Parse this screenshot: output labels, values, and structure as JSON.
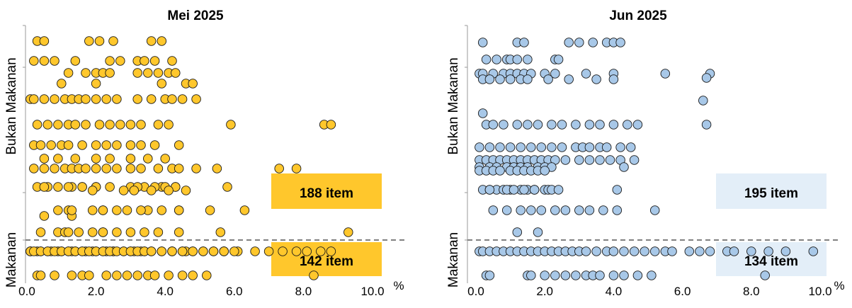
{
  "chart_data": [
    {
      "type": "scatter",
      "title": "Mei 2025",
      "x_unit": "%",
      "xlim": [
        0,
        10
      ],
      "xticks": [
        "0.0",
        "2.0",
        "4.0",
        "6.0",
        "8.0",
        "10.0"
      ],
      "y_groups": [
        "Bukan Makanan",
        "Makanan"
      ],
      "point_color": "#FFC72C",
      "box_color": "#FFC72C",
      "boxes": [
        {
          "label": "188 item",
          "group": "Bukan Makanan"
        },
        {
          "label": "142 item",
          "group": "Makanan"
        }
      ],
      "strip_points": [
        {
          "strip": 1,
          "x": [
            0.3,
            0.5,
            1.8,
            2.1,
            2.5,
            3.6,
            3.9
          ]
        },
        {
          "strip": 2,
          "x": [
            0.2,
            0.5,
            0.8,
            1.4,
            2.4,
            2.7,
            3.2,
            3.4,
            3.7,
            4.2
          ]
        },
        {
          "strip": 3,
          "x": [
            1.2,
            1.7,
            2.0,
            2.2,
            2.4,
            3.2,
            3.5,
            3.8,
            4.1,
            4.3
          ]
        },
        {
          "strip": 4,
          "x": [
            1.0,
            2.0,
            3.9,
            4.6,
            4.8
          ]
        },
        {
          "strip": 5,
          "x": [
            0.1,
            0.2,
            0.5,
            0.8,
            1.1,
            1.3,
            1.5,
            1.7,
            2.0,
            2.3,
            2.6,
            3.2,
            3.6,
            4.0,
            4.2,
            4.5,
            4.9
          ]
        },
        {
          "strip": 6,
          "x": [
            0.3,
            0.6,
            0.9,
            1.2,
            1.4,
            1.7,
            2.1,
            2.4,
            2.7,
            3.0,
            3.3,
            3.8,
            4.1,
            5.9,
            8.6,
            8.8
          ]
        },
        {
          "strip": 7,
          "x": [
            0.2,
            0.4,
            0.7,
            1.0,
            1.2,
            1.6,
            2.0,
            2.3,
            2.6,
            3.0,
            3.3,
            3.7,
            4.4
          ]
        },
        {
          "strip": 8,
          "x": [
            0.5,
            0.9,
            1.4,
            2.0,
            2.4,
            3.0,
            3.5,
            4.0
          ]
        },
        {
          "strip": 9,
          "x": [
            0.2,
            0.5,
            0.8,
            1.1,
            1.3,
            1.5,
            1.7,
            2.0,
            2.3,
            2.6,
            3.0,
            3.3,
            3.8,
            4.2,
            4.4,
            4.9,
            5.5,
            7.3,
            7.8
          ]
        },
        {
          "strip": 10,
          "x": [
            0.3,
            0.6,
            0.9,
            1.3,
            1.6,
            2.0,
            2.4,
            3.0,
            3.4,
            3.9,
            4.3,
            5.8
          ]
        },
        {
          "strip": 11,
          "x": [
            1.2,
            1.9,
            2.2,
            2.6,
            3.5,
            3.9,
            4.4,
            5.3
          ]
        },
        {
          "strip": 12,
          "x": [
            0.4,
            0.9,
            1.1,
            1.5,
            1.9,
            2.2,
            2.6,
            3.0,
            3.4,
            3.8,
            4.4,
            5.6,
            9.3
          ]
        },
        {
          "strip": 13,
          "x": [
            0.5,
            1.3
          ]
        },
        {
          "strip": 14,
          "x": [
            0.1,
            0.3,
            0.6,
            0.9,
            1.2,
            1.4,
            1.7,
            2.0,
            2.3,
            2.5,
            3.0,
            3.4,
            4.2,
            4.6,
            5.7
          ]
        },
        {
          "strip": 15,
          "x": [
            0.1,
            0.4,
            0.7,
            1.0,
            1.3,
            1.6,
            1.9,
            2.2,
            2.5,
            2.8,
            3.1,
            3.3,
            3.6,
            3.9,
            4.2,
            4.5,
            4.8,
            5.1,
            5.4,
            5.7,
            6.1
          ]
        },
        {
          "strip": 16,
          "x": [
            0.9,
            1.3,
            2.2,
            2.9,
            3.3,
            4.4,
            6.3
          ]
        },
        {
          "strip": 17,
          "x": [
            0.5,
            1.2,
            1.6,
            2.0,
            3.2,
            3.7,
            4.0,
            4.3
          ]
        },
        {
          "strip": 18,
          "x": [
            1.9,
            2.8,
            3.1,
            3.6,
            4.1,
            4.6
          ]
        },
        {
          "strip": 19,
          "x": [
            1.2,
            2.2
          ]
        },
        {
          "strip": 20,
          "x": [
            0.1,
            0.2,
            0.4,
            0.6,
            0.8,
            1.0,
            1.2,
            1.4,
            1.6,
            1.8,
            2.0,
            2.2,
            2.4,
            2.6,
            2.8,
            3.0,
            3.2,
            3.4,
            3.6,
            3.9,
            4.2,
            4.5,
            4.8,
            5.1,
            5.4,
            5.7,
            6.0,
            6.6,
            7.0,
            7.4,
            7.8,
            8.1,
            8.5,
            8.8
          ]
        },
        {
          "strip": 21,
          "x": [
            0.3,
            0.4,
            0.8,
            1.3,
            1.6,
            1.8,
            2.3,
            2.6,
            2.9,
            3.2,
            3.5,
            3.7,
            4.1,
            4.5,
            4.8,
            5.2,
            8.3
          ]
        }
      ]
    },
    {
      "type": "scatter",
      "title": "Jun 2025",
      "x_unit": "%",
      "xlim": [
        0,
        10
      ],
      "xticks": [
        "0.0",
        "2.0",
        "4.0",
        "6.0",
        "8.0",
        "10.0"
      ],
      "y_groups": [
        "Bukan Makanan",
        "Makanan"
      ],
      "point_color": "#A8C8E8",
      "box_color": "#E3EEF8",
      "boxes": [
        {
          "label": "195 item",
          "group": "Bukan Makanan"
        },
        {
          "label": "134 item",
          "group": "Makanan"
        }
      ],
      "strip_points": [
        {
          "strip": 1,
          "x": [
            0.2,
            1.2,
            1.4,
            2.7,
            3.0,
            3.4,
            3.8,
            4.0,
            4.2
          ]
        },
        {
          "strip": 2,
          "x": [
            0.3,
            0.6,
            0.9,
            1.0,
            1.2,
            1.5,
            2.3,
            2.4
          ]
        },
        {
          "strip": 3,
          "x": [
            0.1,
            0.2,
            0.5,
            0.8,
            1.0,
            1.2,
            1.4,
            1.6,
            2.0,
            2.3,
            3.2,
            4.0,
            5.5,
            6.8
          ]
        },
        {
          "strip": 4,
          "x": [
            0.2,
            0.4,
            0.7,
            1.0,
            1.3,
            1.5,
            2.1,
            2.7,
            3.5,
            4.0
          ]
        },
        {
          "strip": 5,
          "x": [
            6.6
          ]
        },
        {
          "strip": 6,
          "x": [
            0.2
          ]
        },
        {
          "strip": 7,
          "x": [
            6.7
          ]
        },
        {
          "strip": 8,
          "x": [
            0.3,
            0.5,
            0.8,
            1.2,
            1.5,
            1.8,
            2.2,
            2.5,
            2.9,
            3.3,
            3.6,
            4.0,
            4.4,
            4.7,
            6.7
          ]
        },
        {
          "strip": 9,
          "x": [
            0.1,
            0.4,
            0.7,
            1.0,
            1.3,
            1.6,
            1.9,
            2.2,
            2.5,
            2.9,
            3.1,
            3.3,
            3.6,
            3.8,
            4.2,
            4.5
          ]
        },
        {
          "strip": 10,
          "x": [
            0.1,
            0.3,
            0.5,
            0.7,
            0.9,
            1.1,
            1.3,
            1.5,
            1.7,
            1.9,
            2.1,
            2.3,
            2.6,
            3.0,
            3.3,
            3.6,
            3.9,
            4.2,
            4.6
          ]
        },
        {
          "strip": 11,
          "x": [
            0.1,
            0.4,
            0.6,
            0.9,
            1.1,
            1.3,
            1.5,
            1.8,
            2.0,
            2.2,
            4.3
          ]
        },
        {
          "strip": 12,
          "x": [
            0.1,
            0.3,
            0.5,
            0.7,
            1.0,
            1.2,
            1.4,
            1.6,
            1.8,
            2.0
          ]
        },
        {
          "strip": 13,
          "x": [
            0.2,
            0.4,
            0.6,
            0.8,
            1.0,
            1.3,
            1.5,
            1.7,
            2.0,
            2.1
          ]
        },
        {
          "strip": 14,
          "x": [
            0.4,
            0.9,
            1.1,
            1.4,
            1.7,
            2.2,
            2.4,
            4.1
          ]
        },
        {
          "strip": 15,
          "x": [
            0.5,
            0.9,
            1.3,
            1.6,
            1.9,
            2.3,
            2.6,
            3.0,
            3.3,
            3.7,
            4.1,
            5.2
          ]
        },
        {
          "strip": 16,
          "x": [
            1.2,
            1.8
          ]
        },
        {
          "strip": 17,
          "x": [
            0.1,
            0.2,
            0.4,
            0.6,
            0.8,
            1.0,
            1.2,
            1.4,
            1.6,
            1.8,
            2.0,
            2.2,
            2.4,
            2.6,
            2.8,
            3.0,
            3.2,
            3.5,
            3.8,
            4.0,
            4.3,
            4.6,
            4.9,
            5.2,
            5.5,
            5.7,
            6.2,
            6.5,
            6.8,
            7.3,
            7.5,
            8.0,
            8.5,
            9.0,
            9.8
          ]
        },
        {
          "strip": 18,
          "x": [
            0.3,
            0.4,
            1.5,
            1.6,
            2.0,
            2.3,
            2.6,
            2.9,
            3.2,
            3.4,
            3.6,
            4.0,
            4.3,
            4.7,
            5.1,
            8.4
          ]
        }
      ]
    }
  ]
}
